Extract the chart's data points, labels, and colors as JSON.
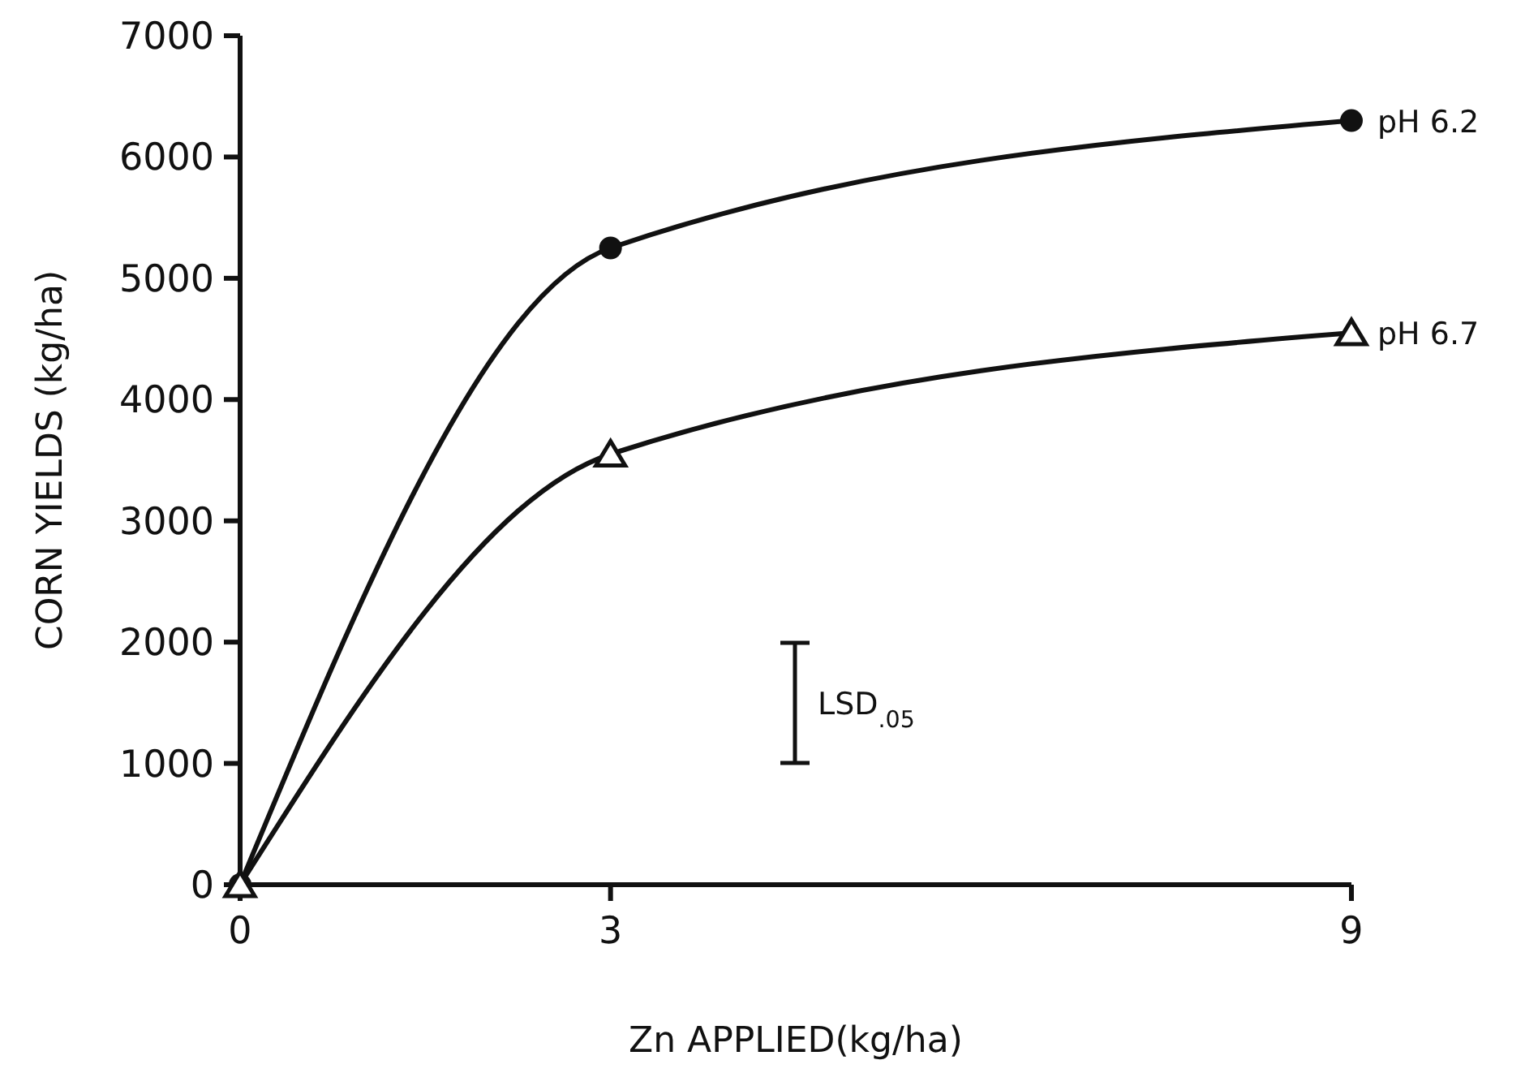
{
  "chart_data": {
    "type": "line",
    "xlabel": "Zn APPLIED(kg/ha)",
    "ylabel": "CORN YIELDS (kg/ha)",
    "x": [
      0,
      3,
      9
    ],
    "series": [
      {
        "name": "pH 6.2",
        "color": "#111111",
        "values": [
          0,
          5250,
          6300
        ],
        "marker": "circle"
      },
      {
        "name": "pH 6.7",
        "color": "#111111",
        "values": [
          0,
          3550,
          4550
        ],
        "marker": "triangle"
      }
    ],
    "annotations": [
      "LSD$_{.05}$"
    ],
    "xlim": [
      0,
      9
    ],
    "xticks": [
      0,
      3,
      9
    ],
    "ylim": [
      0,
      7000
    ],
    "yticks": [
      0,
      1000,
      2000,
      3000,
      4000,
      5000,
      6000,
      7000
    ],
    "grid": false,
    "line_style": "solid"
  }
}
